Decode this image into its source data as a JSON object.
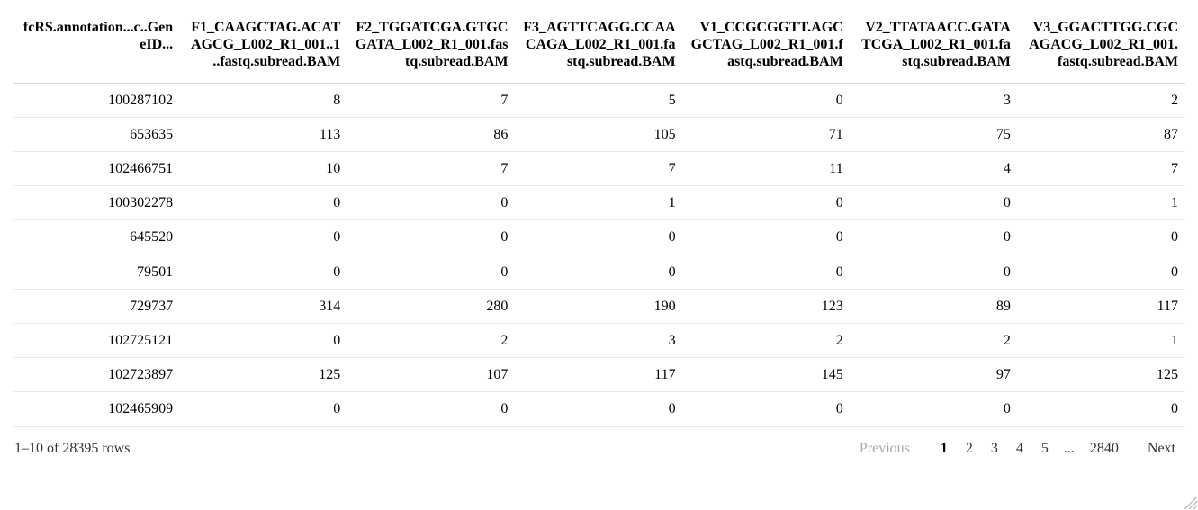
{
  "table": {
    "columns": [
      {
        "label": "fcRS.annotation...c..GeneID..."
      },
      {
        "label": "F1_CAAGCTAG.ACATAGCG_L002_R1_001..1..fastq.subread.BAM"
      },
      {
        "label": "F2_TGGATCGA.GTGCGATA_L002_R1_001.fastq.subread.BAM"
      },
      {
        "label": "F3_AGTTCAGG.CCAACAGA_L002_R1_001.fastq.subread.BAM"
      },
      {
        "label": "V1_CCGCGGTT.AGCGCTAG_L002_R1_001.fastq.subread.BAM"
      },
      {
        "label": "V2_TTATAACC.GATATCGA_L002_R1_001.fastq.subread.BAM"
      },
      {
        "label": "V3_GGACTTGG.CGCAGACG_L002_R1_001.fastq.subread.BAM"
      }
    ],
    "rows": [
      {
        "gene_id": "100287102",
        "values": [
          8,
          7,
          5,
          0,
          3,
          2
        ]
      },
      {
        "gene_id": "653635",
        "values": [
          113,
          86,
          105,
          71,
          75,
          87
        ]
      },
      {
        "gene_id": "102466751",
        "values": [
          10,
          7,
          7,
          11,
          4,
          7
        ]
      },
      {
        "gene_id": "100302278",
        "values": [
          0,
          0,
          1,
          0,
          0,
          1
        ]
      },
      {
        "gene_id": "645520",
        "values": [
          0,
          0,
          0,
          0,
          0,
          0
        ]
      },
      {
        "gene_id": "79501",
        "values": [
          0,
          0,
          0,
          0,
          0,
          0
        ]
      },
      {
        "gene_id": "729737",
        "values": [
          314,
          280,
          190,
          123,
          89,
          117
        ]
      },
      {
        "gene_id": "102725121",
        "values": [
          0,
          2,
          3,
          2,
          2,
          1
        ]
      },
      {
        "gene_id": "102723897",
        "values": [
          125,
          107,
          117,
          145,
          97,
          125
        ]
      },
      {
        "gene_id": "102465909",
        "values": [
          0,
          0,
          0,
          0,
          0,
          0
        ]
      }
    ]
  },
  "footer": {
    "page_info": "1–10 of 28395 rows",
    "pagination": {
      "previous_label": "Previous",
      "next_label": "Next",
      "pages": [
        "1",
        "2",
        "3",
        "4",
        "5"
      ],
      "ellipsis": "...",
      "last_page": "2840",
      "current_page": "1"
    }
  },
  "colors": {
    "text": "#000000",
    "muted_text": "#333333",
    "disabled_text": "#a9a9a9",
    "header_border": "#d9d9d9",
    "row_border": "#e8e8e8",
    "background": "#ffffff"
  }
}
